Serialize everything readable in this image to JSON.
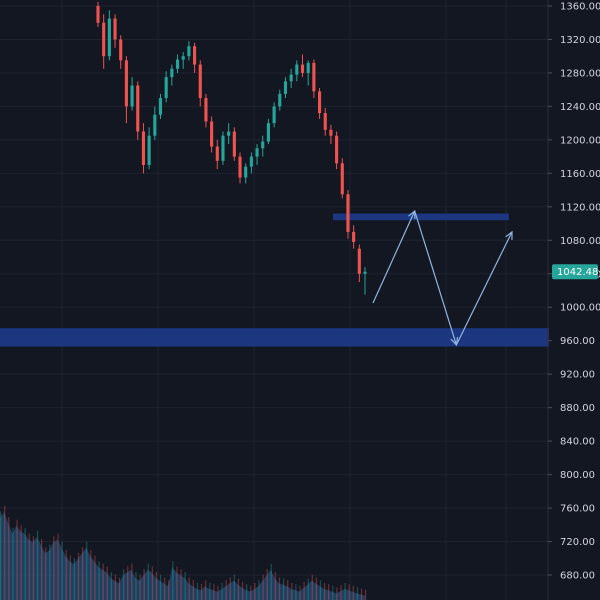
{
  "chart_data": {
    "type": "candlestick",
    "y_axis": {
      "ticks": [
        1360,
        1320,
        1280,
        1240,
        1200,
        1160,
        1120,
        1080,
        1040,
        1000,
        960,
        920,
        880,
        840,
        800,
        760,
        720,
        680
      ],
      "tick_labels": [
        "1360.00",
        "1320.00",
        "1280.00",
        "1240.00",
        "1200.00",
        "1160.00",
        "1120.00",
        "1080.00",
        "1040.00",
        "1000.00",
        "960.00",
        "920.00",
        "880.00",
        "840.00",
        "800.00",
        "760.00",
        "720.00",
        "680.00"
      ],
      "range": [
        650,
        1368
      ],
      "position": "right"
    },
    "last_price": {
      "value": 1042.48,
      "label": "1042.48",
      "color": "#26a69a"
    },
    "candles": [
      [
        1360,
        1365,
        1335,
        1340
      ],
      [
        1340,
        1350,
        1285,
        1300
      ],
      [
        1300,
        1355,
        1295,
        1345
      ],
      [
        1345,
        1350,
        1310,
        1320
      ],
      [
        1320,
        1325,
        1285,
        1295
      ],
      [
        1295,
        1300,
        1220,
        1240
      ],
      [
        1240,
        1275,
        1235,
        1265
      ],
      [
        1265,
        1270,
        1200,
        1210
      ],
      [
        1210,
        1220,
        1160,
        1170
      ],
      [
        1170,
        1215,
        1165,
        1205
      ],
      [
        1205,
        1240,
        1200,
        1230
      ],
      [
        1230,
        1255,
        1225,
        1250
      ],
      [
        1250,
        1282,
        1245,
        1275
      ],
      [
        1275,
        1290,
        1265,
        1285
      ],
      [
        1285,
        1302,
        1280,
        1296
      ],
      [
        1296,
        1305,
        1285,
        1300
      ],
      [
        1300,
        1318,
        1295,
        1312
      ],
      [
        1312,
        1316,
        1280,
        1290
      ],
      [
        1290,
        1295,
        1240,
        1250
      ],
      [
        1250,
        1255,
        1215,
        1222
      ],
      [
        1222,
        1228,
        1185,
        1192
      ],
      [
        1192,
        1200,
        1165,
        1175
      ],
      [
        1175,
        1210,
        1170,
        1205
      ],
      [
        1205,
        1220,
        1195,
        1210
      ],
      [
        1210,
        1215,
        1175,
        1180
      ],
      [
        1180,
        1185,
        1148,
        1155
      ],
      [
        1155,
        1172,
        1148,
        1168
      ],
      [
        1168,
        1185,
        1160,
        1180
      ],
      [
        1180,
        1195,
        1170,
        1190
      ],
      [
        1190,
        1205,
        1180,
        1198
      ],
      [
        1198,
        1225,
        1195,
        1220
      ],
      [
        1220,
        1245,
        1215,
        1240
      ],
      [
        1240,
        1260,
        1235,
        1255
      ],
      [
        1255,
        1275,
        1250,
        1270
      ],
      [
        1270,
        1285,
        1262,
        1278
      ],
      [
        1278,
        1295,
        1270,
        1290
      ],
      [
        1290,
        1302,
        1275,
        1280
      ],
      [
        1280,
        1295,
        1265,
        1292
      ],
      [
        1292,
        1296,
        1250,
        1258
      ],
      [
        1258,
        1262,
        1225,
        1232
      ],
      [
        1232,
        1238,
        1205,
        1212
      ],
      [
        1212,
        1218,
        1195,
        1205
      ],
      [
        1205,
        1210,
        1165,
        1172
      ],
      [
        1172,
        1178,
        1130,
        1135
      ],
      [
        1135,
        1140,
        1082,
        1090
      ],
      [
        1090,
        1098,
        1070,
        1078
      ],
      [
        1070,
        1075,
        1030,
        1040
      ],
      [
        1040,
        1048,
        1015,
        1042.48
      ]
    ],
    "volume": [
      150,
      160,
      140,
      120,
      135,
      125,
      120,
      110,
      105,
      115,
      100,
      85,
      90,
      105,
      110,
      95,
      80,
      70,
      65,
      75,
      85,
      95,
      80,
      70,
      60,
      55,
      50,
      40,
      35,
      30,
      45,
      50,
      55,
      40,
      35,
      45,
      55,
      50,
      40,
      35,
      30,
      25,
      60,
      50,
      45,
      40,
      30,
      25,
      20,
      18,
      25,
      20,
      18,
      15,
      20,
      25,
      30,
      35,
      28,
      22,
      18,
      15,
      20,
      25,
      35,
      45,
      55,
      40,
      30,
      28,
      25,
      20,
      18,
      15,
      22,
      28,
      35,
      30,
      25,
      20,
      18,
      15,
      12,
      16,
      20,
      18,
      15,
      12,
      10,
      8
    ],
    "zones": [
      {
        "name": "resistance-zone",
        "from": 1104,
        "to": 1112,
        "x_start_frac": 0.555,
        "x_end_frac": 0.848
      },
      {
        "name": "support-zone",
        "from": 953,
        "to": 975,
        "x_start_frac": 0.0,
        "x_end_frac": 0.915
      }
    ],
    "projection_path": [
      {
        "t": 1.0,
        "price": 1005
      },
      {
        "t": 2.5,
        "price": 1115
      },
      {
        "t": 4.0,
        "price": 955
      },
      {
        "t": 6.0,
        "price": 1090
      }
    ],
    "colors": {
      "up": "#26a69a",
      "down": "#ef5350",
      "zone": "#1e3a8a",
      "arrow": "#90b4e0",
      "volume_area": "#2b5f8f",
      "grid": "#1f2330"
    }
  }
}
